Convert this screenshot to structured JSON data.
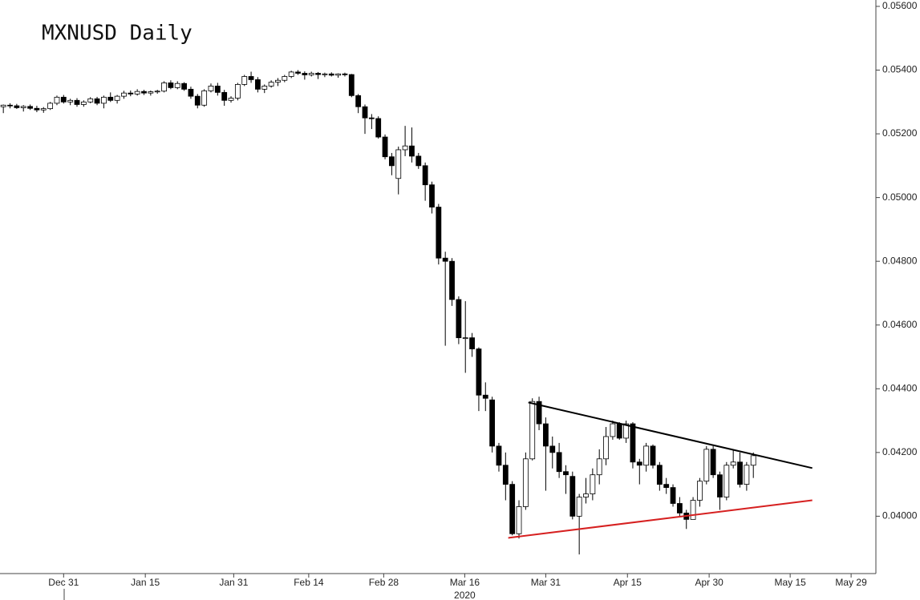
{
  "chart_data": {
    "type": "candlestick",
    "title": "MXNUSD Daily",
    "year_label": "2020",
    "up_color": "#ffffff",
    "down_color": "#000000",
    "open": [
      0.05285,
      0.0529,
      0.05288,
      0.05282,
      0.05286,
      0.0528,
      0.05275,
      0.05279,
      0.05296,
      0.05315,
      0.053,
      0.05305,
      0.05292,
      0.053,
      0.0531,
      0.05296,
      0.05315,
      0.05305,
      0.05318,
      0.05328,
      0.05325,
      0.05333,
      0.05328,
      0.05332,
      0.05334,
      0.0536,
      0.05345,
      0.05358,
      0.0534,
      0.05318,
      0.0529,
      0.05335,
      0.0535,
      0.0533,
      0.05305,
      0.05312,
      0.05355,
      0.0538,
      0.0537,
      0.0534,
      0.0535,
      0.05362,
      0.05368,
      0.0538,
      0.05394,
      0.0539,
      0.05385,
      0.0539,
      0.05386,
      0.05388,
      0.05384,
      0.05388,
      0.05386,
      0.0532,
      0.05285,
      0.0525,
      0.05248,
      0.0519,
      0.05128,
      0.0506,
      0.0515,
      0.05162,
      0.0513,
      0.051,
      0.0504,
      0.0497,
      0.0481,
      0.048,
      0.0468,
      0.0456,
      0.0456,
      0.04525,
      0.0438,
      0.04365,
      0.0422,
      0.0416,
      0.041,
      0.03945,
      0.0403,
      0.0418,
      0.0436,
      0.0429,
      0.0422,
      0.042,
      0.0414,
      0.04125,
      0.04,
      0.0406,
      0.0407,
      0.0413,
      0.0418,
      0.0425,
      0.0429,
      0.04245,
      0.0429,
      0.0417,
      0.0416,
      0.0422,
      0.0416,
      0.041,
      0.0409,
      0.0404,
      0.0401,
      0.0399,
      0.0405,
      0.0411,
      0.0421,
      0.0413,
      0.0406,
      0.0416,
      0.0417,
      0.041,
      0.0416
    ],
    "high": [
      0.05292,
      0.05296,
      0.05294,
      0.0529,
      0.05292,
      0.05288,
      0.05284,
      0.053,
      0.0532,
      0.05322,
      0.0531,
      0.05312,
      0.05305,
      0.05315,
      0.05316,
      0.0532,
      0.0533,
      0.05322,
      0.05335,
      0.05336,
      0.0534,
      0.05338,
      0.05336,
      0.05338,
      0.05365,
      0.05368,
      0.05365,
      0.05362,
      0.05348,
      0.05325,
      0.0534,
      0.05358,
      0.0536,
      0.05338,
      0.05318,
      0.0536,
      0.05385,
      0.05395,
      0.05378,
      0.05355,
      0.05368,
      0.05375,
      0.05385,
      0.05398,
      0.054,
      0.05396,
      0.05395,
      0.05394,
      0.05392,
      0.05393,
      0.0539,
      0.05392,
      0.05388,
      0.05325,
      0.05292,
      0.05262,
      0.05255,
      0.05198,
      0.0514,
      0.0516,
      0.05225,
      0.0522,
      0.0514,
      0.0511,
      0.0505,
      0.0498,
      0.0483,
      0.0481,
      0.0469,
      0.04675,
      0.04575,
      0.0453,
      0.0442,
      0.04375,
      0.0423,
      0.042,
      0.0411,
      0.0405,
      0.042,
      0.0437,
      0.04375,
      0.0431,
      0.0425,
      0.0423,
      0.0416,
      0.0414,
      0.0407,
      0.0412,
      0.0415,
      0.0421,
      0.0428,
      0.043,
      0.04295,
      0.043,
      0.04295,
      0.0418,
      0.0423,
      0.04225,
      0.0417,
      0.0412,
      0.041,
      0.0406,
      0.0402,
      0.0406,
      0.0412,
      0.0422,
      0.0422,
      0.0414,
      0.0417,
      0.0421,
      0.042,
      0.0417,
      0.042
    ],
    "low": [
      0.05265,
      0.0528,
      0.05278,
      0.0527,
      0.05275,
      0.05268,
      0.05266,
      0.05275,
      0.0529,
      0.05295,
      0.0529,
      0.05285,
      0.05285,
      0.05296,
      0.0529,
      0.0528,
      0.053,
      0.05295,
      0.0531,
      0.05318,
      0.0532,
      0.05322,
      0.0532,
      0.05326,
      0.0533,
      0.0534,
      0.0534,
      0.05335,
      0.0531,
      0.0528,
      0.05285,
      0.0533,
      0.0532,
      0.05288,
      0.05298,
      0.05305,
      0.0535,
      0.0536,
      0.0533,
      0.05328,
      0.05345,
      0.0535,
      0.05362,
      0.05375,
      0.05385,
      0.0537,
      0.0538,
      0.05372,
      0.05378,
      0.0538,
      0.05376,
      0.0538,
      0.05315,
      0.05265,
      0.052,
      0.05215,
      0.05185,
      0.0512,
      0.0507,
      0.0501,
      0.0513,
      0.0511,
      0.0509,
      0.0499,
      0.0495,
      0.0479,
      0.04535,
      0.0466,
      0.0454,
      0.0445,
      0.045,
      0.0433,
      0.0433,
      0.042,
      0.0414,
      0.0405,
      0.0394,
      0.0393,
      0.0402,
      0.04175,
      0.0427,
      0.0408,
      0.0415,
      0.0412,
      0.0407,
      0.0399,
      0.0388,
      0.0404,
      0.0405,
      0.041,
      0.0416,
      0.0424,
      0.0424,
      0.0423,
      0.0415,
      0.041,
      0.0414,
      0.0415,
      0.0408,
      0.0407,
      0.0403,
      0.04,
      0.0396,
      0.0399,
      0.0403,
      0.041,
      0.0412,
      0.0402,
      0.0405,
      0.0415,
      0.0409,
      0.0408,
      0.0412
    ],
    "close": [
      0.0529,
      0.05288,
      0.05282,
      0.05286,
      0.0528,
      0.05275,
      0.05279,
      0.05296,
      0.05315,
      0.053,
      0.05305,
      0.05292,
      0.053,
      0.0531,
      0.05296,
      0.05315,
      0.05305,
      0.05318,
      0.05328,
      0.05325,
      0.05333,
      0.05328,
      0.05332,
      0.05334,
      0.0536,
      0.05345,
      0.05358,
      0.0534,
      0.05318,
      0.0529,
      0.05335,
      0.0535,
      0.0533,
      0.05305,
      0.05312,
      0.05355,
      0.0538,
      0.0537,
      0.0534,
      0.0535,
      0.05362,
      0.05368,
      0.0538,
      0.05394,
      0.0539,
      0.05385,
      0.0539,
      0.05386,
      0.05388,
      0.05384,
      0.05388,
      0.05386,
      0.0532,
      0.05285,
      0.0525,
      0.05248,
      0.0519,
      0.05128,
      0.051,
      0.0515,
      0.05162,
      0.0513,
      0.051,
      0.0504,
      0.0497,
      0.0481,
      0.048,
      0.0468,
      0.0456,
      0.0456,
      0.04525,
      0.0438,
      0.0437,
      0.0422,
      0.0416,
      0.041,
      0.03945,
      0.0403,
      0.0418,
      0.0436,
      0.0429,
      0.0422,
      0.042,
      0.0414,
      0.0413,
      0.04,
      0.0406,
      0.0407,
      0.0413,
      0.0418,
      0.0425,
      0.0429,
      0.04245,
      0.0429,
      0.0417,
      0.0416,
      0.0422,
      0.0416,
      0.041,
      0.0409,
      0.0404,
      0.0401,
      0.0399,
      0.0405,
      0.0411,
      0.0421,
      0.0413,
      0.0406,
      0.0416,
      0.0417,
      0.041,
      0.0416,
      0.0419
    ],
    "xlim": [
      -0.5,
      130.3
    ],
    "xticks": [
      {
        "value": 9.0,
        "label": "Dec 31"
      },
      {
        "value": 21.2,
        "label": "Jan 15"
      },
      {
        "value": 34.4,
        "label": "Jan 31"
      },
      {
        "value": 45.6,
        "label": "Feb 14"
      },
      {
        "value": 56.8,
        "label": "Feb 28"
      },
      {
        "value": 68.9,
        "label": "Mar 16"
      },
      {
        "value": 81.0,
        "label": "Mar 31"
      },
      {
        "value": 93.2,
        "label": "Apr 15"
      },
      {
        "value": 105.4,
        "label": "Apr 30"
      },
      {
        "value": 117.5,
        "label": "May 15"
      },
      {
        "value": 126.6,
        "label": "May 29"
      }
    ],
    "ylim": [
      0.0382,
      0.0562
    ],
    "yticks": [
      {
        "value": 0.04,
        "label": "0.04000"
      },
      {
        "value": 0.042,
        "label": "0.04200"
      },
      {
        "value": 0.044,
        "label": "0.04400"
      },
      {
        "value": 0.046,
        "label": "0.04600"
      },
      {
        "value": 0.048,
        "label": "0.04800"
      },
      {
        "value": 0.05,
        "label": "0.05000"
      },
      {
        "value": 0.052,
        "label": "0.05200"
      },
      {
        "value": 0.054,
        "label": "0.05400"
      },
      {
        "value": 0.056,
        "label": "0.05600"
      }
    ],
    "trendlines": [
      {
        "x": [
          78.4,
          120.8
        ],
        "y": [
          0.04357,
          0.04151
        ],
        "color": "#000000"
      },
      {
        "x": [
          75.4,
          120.8
        ],
        "y": [
          0.03932,
          0.0405
        ],
        "color": "#d62020"
      }
    ]
  }
}
